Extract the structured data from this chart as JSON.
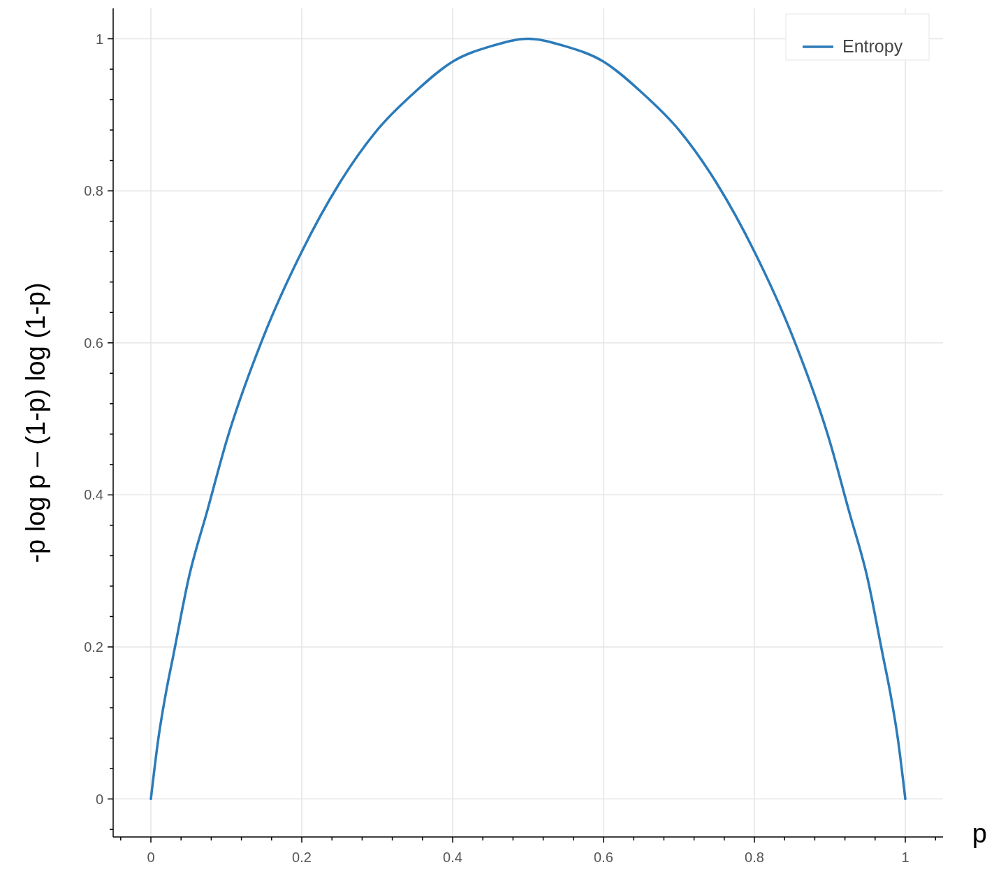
{
  "chart_data": {
    "type": "line",
    "xlabel": "p",
    "ylabel": "-p log p – (1-p) log (1-p)",
    "xlim": [
      -0.05,
      1.05
    ],
    "ylim": [
      -0.05,
      1.04
    ],
    "xticks": [
      {
        "value": -0.04,
        "label": null
      },
      0,
      {
        "value": 0.04,
        "label": null
      },
      {
        "value": 0.08,
        "label": null
      },
      {
        "value": 0.12,
        "label": null
      },
      {
        "value": 0.16,
        "label": null
      },
      0.2,
      {
        "value": 0.24,
        "label": null
      },
      {
        "value": 0.28,
        "label": null
      },
      {
        "value": 0.32,
        "label": null
      },
      {
        "value": 0.36,
        "label": null
      },
      0.4,
      {
        "value": 0.44,
        "label": null
      },
      {
        "value": 0.48,
        "label": null
      },
      {
        "value": 0.52,
        "label": null
      },
      {
        "value": 0.56,
        "label": null
      },
      0.6,
      {
        "value": 0.64,
        "label": null
      },
      {
        "value": 0.68,
        "label": null
      },
      {
        "value": 0.72,
        "label": null
      },
      {
        "value": 0.76,
        "label": null
      },
      0.8,
      {
        "value": 0.84,
        "label": null
      },
      {
        "value": 0.88,
        "label": null
      },
      {
        "value": 0.92,
        "label": null
      },
      {
        "value": 0.96,
        "label": null
      },
      1,
      {
        "value": 1.04,
        "label": null
      }
    ],
    "yticks": [
      {
        "value": -0.04,
        "label": null
      },
      0,
      {
        "value": 0.04,
        "label": null
      },
      {
        "value": 0.08,
        "label": null
      },
      {
        "value": 0.12,
        "label": null
      },
      {
        "value": 0.16,
        "label": null
      },
      0.2,
      {
        "value": 0.24,
        "label": null
      },
      {
        "value": 0.28,
        "label": null
      },
      {
        "value": 0.32,
        "label": null
      },
      {
        "value": 0.36,
        "label": null
      },
      0.4,
      {
        "value": 0.44,
        "label": null
      },
      {
        "value": 0.48,
        "label": null
      },
      {
        "value": 0.52,
        "label": null
      },
      {
        "value": 0.56,
        "label": null
      },
      0.6,
      {
        "value": 0.64,
        "label": null
      },
      {
        "value": 0.68,
        "label": null
      },
      {
        "value": 0.72,
        "label": null
      },
      {
        "value": 0.76,
        "label": null
      },
      0.8,
      {
        "value": 0.84,
        "label": null
      },
      {
        "value": 0.88,
        "label": null
      },
      {
        "value": 0.92,
        "label": null
      },
      {
        "value": 0.96,
        "label": null
      },
      1
    ],
    "grid": true,
    "legend": "top right",
    "line_style": "solid",
    "series": [
      {
        "name": "Entropy",
        "color": "#2b7bba",
        "x": [
          0,
          0.01,
          0.02,
          0.03,
          0.05,
          0.075,
          0.1,
          0.15,
          0.2,
          0.25,
          0.3,
          0.35,
          0.4,
          0.45,
          0.5,
          0.55,
          0.6,
          0.65,
          0.7,
          0.75,
          0.8,
          0.85,
          0.9,
          0.925,
          0.95,
          0.97,
          0.98,
          0.99,
          1
        ],
        "values": [
          0,
          0.08,
          0.14,
          0.19,
          0.29,
          0.38,
          0.47,
          0.61,
          0.72,
          0.81,
          0.88,
          0.93,
          0.97,
          0.99,
          1,
          0.99,
          0.97,
          0.93,
          0.88,
          0.81,
          0.72,
          0.61,
          0.47,
          0.38,
          0.29,
          0.19,
          0.14,
          0.08,
          0
        ]
      }
    ]
  }
}
